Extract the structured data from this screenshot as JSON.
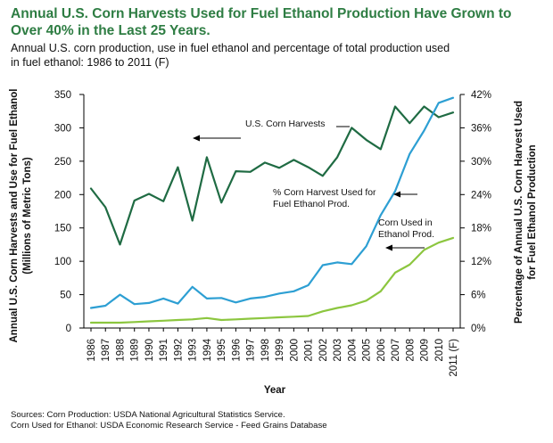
{
  "header": {
    "title_line1": "Annual U.S. Corn Harvests Used for Fuel Ethanol Production Have Grown to",
    "title_line2": "Over 40% in the Last 25 Years.",
    "subtitle_line1": "Annual U.S. corn production, use in fuel ethanol and percentage of total production used",
    "subtitle_line2": "in fuel ethanol: 1986 to 2011 (F)"
  },
  "footer": {
    "source_line1": "Sources: Corn Production: USDA National Agricultural Statistics Service.",
    "source_line2": "Corn Used for Ethanol: USDA Economic Research Service - Feed Grains Database"
  },
  "chart_data": {
    "type": "line",
    "x": [
      "1986",
      "1987",
      "1988",
      "1989",
      "1990",
      "1991",
      "1992",
      "1993",
      "1994",
      "1995",
      "1996",
      "1997",
      "1998",
      "1999",
      "2000",
      "2001",
      "2002",
      "2003",
      "2004",
      "2005",
      "2006",
      "2007",
      "2008",
      "2009",
      "2010",
      "2011 (F)"
    ],
    "xlabel": "Year",
    "ylabel_left_line1": "Annual U.S. Corn Harvests and Use for Fuel Ethanol",
    "ylabel_left_line2": "(Millions of Metric Tons)",
    "ylabel_right_line1": "Percentage of Annual U.S. Corn Harvest Used",
    "ylabel_right_line2": "for Fuel Ethanol Production",
    "ylim_left": [
      0,
      350
    ],
    "ylim_right": [
      0,
      42
    ],
    "yticks_left": [
      "0",
      "50",
      "100",
      "150",
      "200",
      "250",
      "300",
      "350"
    ],
    "yticks_right": [
      "0%",
      "6%",
      "12%",
      "18%",
      "24%",
      "30%",
      "36%",
      "42%"
    ],
    "grid": false,
    "series": [
      {
        "axis": "left",
        "color": "#1f6b43",
        "values": [
          209,
          181,
          125,
          191,
          201,
          190,
          241,
          161,
          256,
          188,
          235,
          234,
          248,
          240,
          252,
          241,
          228,
          256,
          300,
          282,
          268,
          332,
          307,
          332,
          316,
          323
        ]
      },
      {
        "axis": "right",
        "color": "#2d9fd3",
        "values": [
          3.6,
          4.0,
          6.0,
          4.3,
          4.5,
          5.3,
          4.4,
          7.4,
          5.3,
          5.4,
          4.6,
          5.3,
          5.6,
          6.2,
          6.6,
          7.7,
          11.3,
          11.8,
          11.5,
          14.7,
          20.3,
          24.6,
          31.3,
          35.5,
          40.5,
          41.4
        ]
      },
      {
        "axis": "left",
        "color": "#8cc63f",
        "values": [
          8,
          8,
          8,
          9,
          10,
          11,
          12,
          13,
          15,
          12,
          13,
          14,
          15,
          16,
          17,
          18,
          25,
          30,
          34,
          41,
          55,
          83,
          95,
          117,
          128,
          135
        ]
      }
    ],
    "annotations": [
      {
        "text": "U.S. Corn Harvests"
      },
      {
        "text_line1": "% Corn Harvest Used for",
        "text_line2": "Fuel Ethanol Prod."
      },
      {
        "text_line1": "Corn Used in",
        "text_line2": "Ethanol Prod."
      }
    ]
  }
}
